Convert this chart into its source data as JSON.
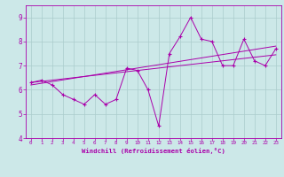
{
  "xlabel": "Windchill (Refroidissement éolien,°C)",
  "bg_color": "#cce8e8",
  "grid_color": "#aacccc",
  "line_color": "#aa00aa",
  "ylim": [
    4,
    9.5
  ],
  "xlim": [
    -0.5,
    23.5
  ],
  "yticks": [
    4,
    5,
    6,
    7,
    8,
    9
  ],
  "xticks": [
    0,
    1,
    2,
    3,
    4,
    5,
    6,
    7,
    8,
    9,
    10,
    11,
    12,
    13,
    14,
    15,
    16,
    17,
    18,
    19,
    20,
    21,
    22,
    23
  ],
  "data_line": [
    6.3,
    6.4,
    6.2,
    5.8,
    5.6,
    5.4,
    5.8,
    5.4,
    5.6,
    6.9,
    6.8,
    6.0,
    4.5,
    7.5,
    8.2,
    9.0,
    8.1,
    8.0,
    7.0,
    7.0,
    8.1,
    7.2,
    7.0,
    7.7
  ],
  "trend1": [
    6.3,
    6.35,
    6.4,
    6.45,
    6.5,
    6.55,
    6.6,
    6.65,
    6.7,
    6.75,
    6.8,
    6.85,
    6.9,
    6.95,
    7.0,
    7.05,
    7.1,
    7.15,
    7.2,
    7.25,
    7.3,
    7.35,
    7.4,
    7.45
  ],
  "trend2": [
    6.2,
    6.27,
    6.34,
    6.41,
    6.48,
    6.55,
    6.62,
    6.69,
    6.76,
    6.83,
    6.9,
    6.97,
    7.04,
    7.11,
    7.18,
    7.25,
    7.32,
    7.39,
    7.46,
    7.53,
    7.6,
    7.67,
    7.74,
    7.81
  ],
  "lw": 0.7,
  "marker_size": 3,
  "tick_fontsize_x": 4.2,
  "tick_fontsize_y": 5.5,
  "xlabel_fontsize": 5.2
}
